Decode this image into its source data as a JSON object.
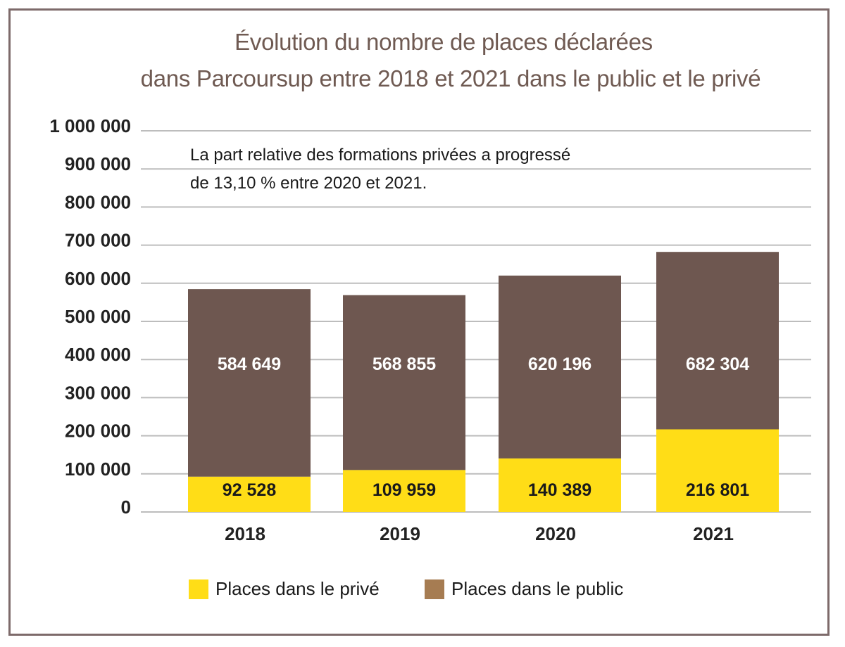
{
  "chart_data": {
    "type": "bar",
    "stacked": true,
    "title": "Évolution du nombre de places déclarées dans Parcoursup entre 2018 et 2021 dans le public et le privé",
    "title_lines": [
      "Évolution du nombre de places déclarées",
      "dans Parcoursup entre 2018 et 2021 dans le public et le privé"
    ],
    "annotation_lines": [
      "La part relative des formations privées a progressé",
      "de 13,10 % entre 2020 et 2021."
    ],
    "categories": [
      "2018",
      "2019",
      "2020",
      "2021"
    ],
    "series": [
      {
        "name": "Places dans le privé",
        "color": "#ffdd17",
        "values": [
          92528,
          109959,
          140389,
          216801
        ],
        "labels": [
          "92 528",
          "109 959",
          "140 389",
          "216 801"
        ]
      },
      {
        "name": "Places dans le public",
        "color": "#6e5750",
        "legend_color": "#a67c52",
        "values": [
          584649,
          568855,
          620196,
          682304
        ],
        "labels": [
          "584 649",
          "568 855",
          "620 196",
          "682 304"
        ]
      }
    ],
    "ylim": [
      0,
      1000000
    ],
    "yticks": [
      0,
      100000,
      200000,
      300000,
      400000,
      500000,
      600000,
      700000,
      800000,
      900000,
      1000000
    ],
    "ytick_labels": [
      "0",
      "100 000",
      "200 000",
      "300 000",
      "400 000",
      "500 000",
      "600 000",
      "700 000",
      "800 000",
      "900 000",
      "1 000 000"
    ],
    "xlabel": "",
    "ylabel": "",
    "grid": true,
    "legend_position": "bottom"
  }
}
